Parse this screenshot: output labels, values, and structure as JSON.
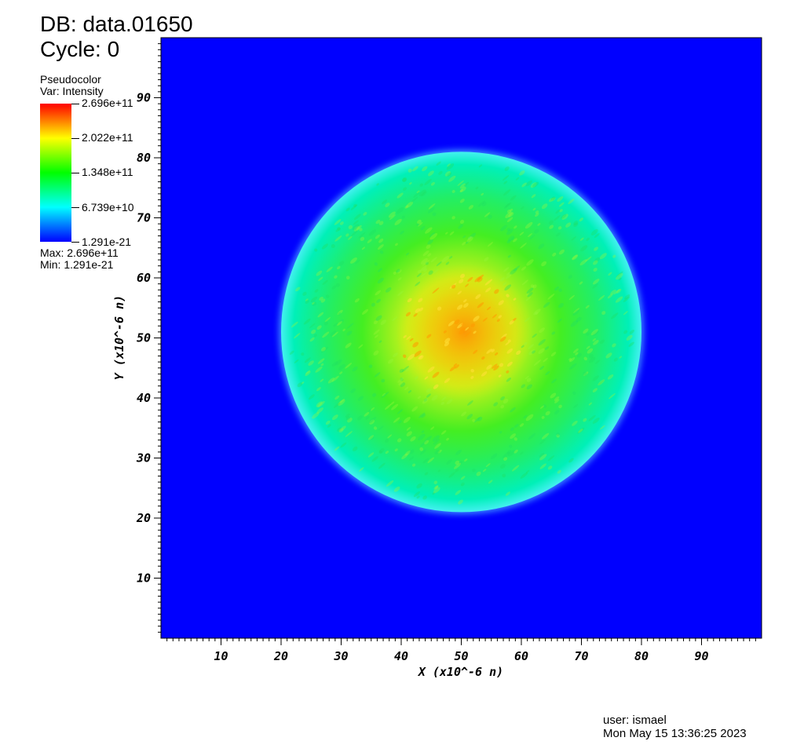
{
  "header": {
    "db": "DB: data.01650",
    "cycle": "Cycle: 0"
  },
  "legend": {
    "plot_type": "Pseudocolor",
    "variable": "Var: Intensity",
    "ticks": [
      "2.696e+11",
      "2.022e+11",
      "1.348e+11",
      "6.739e+10",
      "1.291e-21"
    ],
    "max": "Max:  2.696e+11",
    "min": "Min:  1.291e-21",
    "colormap": [
      "#0000ff",
      "#00ffff",
      "#00ff00",
      "#ffff00",
      "#ff0000"
    ]
  },
  "footer": {
    "user": "user: ismael",
    "date": "Mon May 15 13:36:25 2023"
  },
  "chart_data": {
    "type": "heatmap",
    "xlabel": "X (x10^-6 n)",
    "ylabel": "Y (x10^-6 n)",
    "xlim": [
      0,
      100
    ],
    "ylim": [
      0,
      100
    ],
    "x_ticks": [
      10,
      20,
      30,
      40,
      50,
      60,
      70,
      80,
      90
    ],
    "y_ticks": [
      10,
      20,
      30,
      40,
      50,
      60,
      70,
      80,
      90
    ],
    "value_range": [
      1.291e-21,
      269600000000.0
    ],
    "background_color": "#0000ff",
    "field": {
      "shape": "disk",
      "center": [
        50,
        51
      ],
      "radius": 30,
      "center_value": 240000000000.0,
      "edge_value": 75000000000.0,
      "outside_value": 1.291e-21
    }
  }
}
